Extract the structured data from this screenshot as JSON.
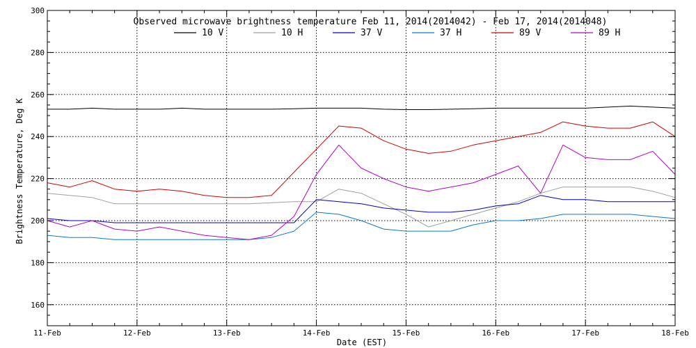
{
  "chart_data": {
    "type": "line",
    "title": "Observed microwave brightness temperature Feb 11, 2014(2014042) - Feb 17, 2014(2014048)",
    "xlabel": "Date (EST)",
    "ylabel": "Brightness Temperature, Deg K",
    "xlim": [
      "2014-02-11",
      "2014-02-18"
    ],
    "ylim": [
      150,
      300
    ],
    "x_ticks": [
      "11-Feb",
      "12-Feb",
      "13-Feb",
      "14-Feb",
      "15-Feb",
      "16-Feb",
      "17-Feb",
      "18-Feb"
    ],
    "y_ticks": [
      160,
      180,
      200,
      220,
      240,
      260,
      280,
      300
    ],
    "grid": true,
    "legend_position": "top-center",
    "x": [
      "2014-02-11 00:00",
      "2014-02-11 06:00",
      "2014-02-11 12:00",
      "2014-02-11 18:00",
      "2014-02-12 00:00",
      "2014-02-12 06:00",
      "2014-02-12 12:00",
      "2014-02-12 18:00",
      "2014-02-13 00:00",
      "2014-02-13 06:00",
      "2014-02-13 12:00",
      "2014-02-13 18:00",
      "2014-02-14 00:00",
      "2014-02-14 06:00",
      "2014-02-14 12:00",
      "2014-02-14 18:00",
      "2014-02-15 00:00",
      "2014-02-15 06:00",
      "2014-02-15 12:00",
      "2014-02-15 18:00",
      "2014-02-16 00:00",
      "2014-02-16 06:00",
      "2014-02-16 12:00",
      "2014-02-16 18:00",
      "2014-02-17 00:00",
      "2014-02-17 06:00",
      "2014-02-17 12:00",
      "2014-02-17 18:00",
      "2014-02-18 00:00"
    ],
    "series": [
      {
        "name": "10 V",
        "color": "#000000",
        "values": [
          253,
          253,
          253.5,
          253,
          253,
          253,
          253.5,
          253,
          253,
          253,
          253,
          253.2,
          253.5,
          253.5,
          253.5,
          253,
          252.8,
          252.8,
          253,
          253.2,
          253.5,
          253.5,
          253.5,
          253.5,
          253.5,
          254,
          254.5,
          254,
          253.5
        ]
      },
      {
        "name": "10 H",
        "color": "#9e9e9e",
        "values": [
          213,
          212,
          211,
          208,
          208,
          208,
          208,
          208,
          208,
          208,
          208.5,
          209,
          209,
          215,
          213,
          208,
          203,
          197,
          200,
          203,
          206,
          209,
          213,
          216,
          216,
          216,
          216,
          214,
          211
        ]
      },
      {
        "name": "37 V",
        "color": "#0000c8",
        "values": [
          201,
          200,
          200,
          199,
          199,
          199,
          199,
          199,
          199,
          199,
          199,
          199,
          210,
          209,
          208,
          206,
          205,
          204,
          204,
          205,
          207,
          208,
          212,
          210,
          210,
          209,
          209,
          209,
          209
        ]
      },
      {
        "name": "37 H",
        "color": "#0a78d2",
        "values": [
          193,
          192,
          192,
          191,
          191,
          191,
          191,
          191,
          191,
          191,
          192,
          195,
          204,
          203,
          200,
          196,
          195,
          195,
          195,
          198,
          200,
          200,
          201,
          203,
          203,
          203,
          203,
          202,
          201
        ]
      },
      {
        "name": "89 V",
        "color": "#d40000",
        "values": [
          218,
          216,
          219,
          215,
          214,
          215,
          214,
          212,
          211,
          211,
          212,
          223,
          234,
          245,
          244,
          238,
          234,
          232,
          233,
          236,
          238,
          240,
          242,
          247,
          245,
          244,
          244,
          247,
          240
        ]
      },
      {
        "name": "89 H",
        "color": "#b400c8",
        "values": [
          200,
          197,
          200,
          196,
          195,
          197,
          195,
          193,
          192,
          191,
          193,
          202,
          222,
          236,
          225,
          220,
          216,
          214,
          216,
          218,
          222,
          226,
          213,
          236,
          230,
          229,
          229,
          233,
          222
        ]
      }
    ]
  }
}
